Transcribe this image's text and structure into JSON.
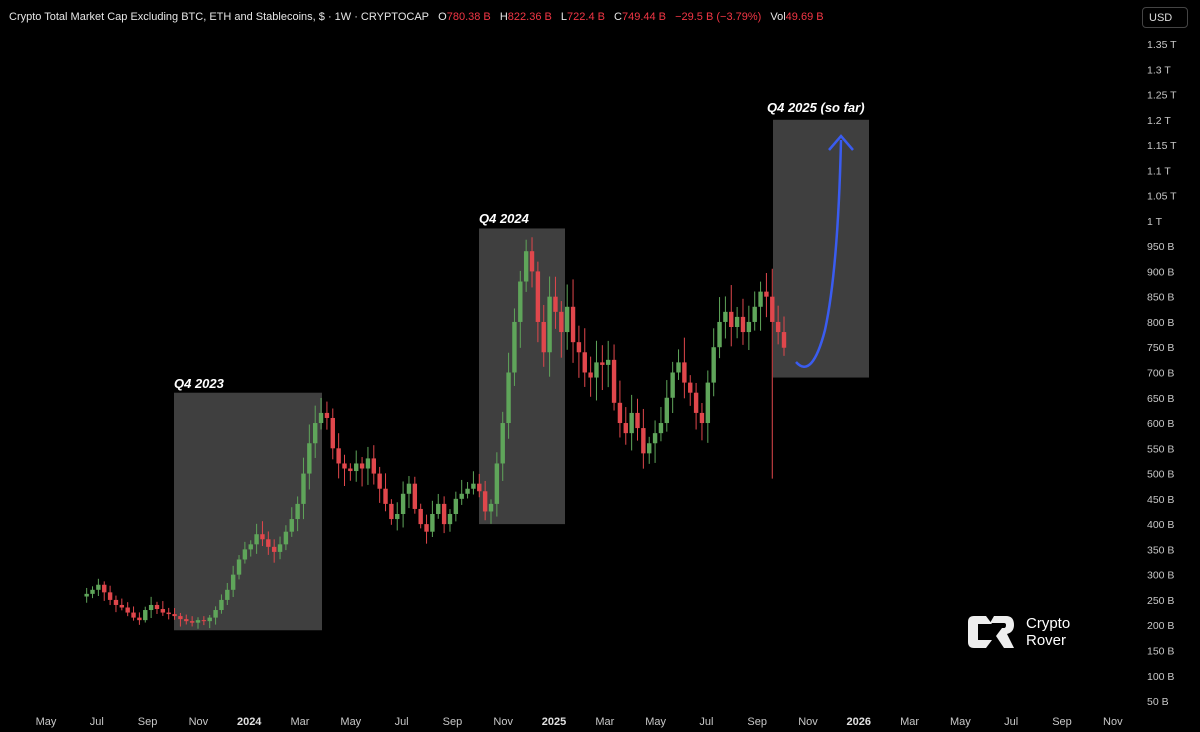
{
  "header": {
    "title": "Crypto Total Market Cap Excluding BTC, ETH and Stablecoins, $ · 1W · CRYPTOCAP",
    "open_label": "O",
    "open": "780.38 B",
    "high_label": "H",
    "high": "822.36 B",
    "low_label": "L",
    "low": "722.4 B",
    "close_label": "C",
    "close": "749.44 B",
    "change": "−29.5 B (−3.79%)",
    "vol_label": "Vol",
    "vol": "49.69 B"
  },
  "currency_button": "USD",
  "colors": {
    "up": "#5fa55a",
    "down": "#e0474c",
    "box": "#4a4a4a",
    "arrow": "#3a5cf0"
  },
  "logo": {
    "line1": "Crypto",
    "line2": "Rover"
  },
  "chart_data": {
    "type": "candlestick",
    "interval": "1W",
    "y_unit": "B",
    "ylim": [
      50,
      1350
    ],
    "y_ticks": [
      "1.35 T",
      "1.3 T",
      "1.25 T",
      "1.2 T",
      "1.15 T",
      "1.1 T",
      "1.05 T",
      "1 T",
      "950 B",
      "900 B",
      "850 B",
      "800 B",
      "750 B",
      "700 B",
      "650 B",
      "600 B",
      "550 B",
      "500 B",
      "450 B",
      "400 B",
      "350 B",
      "300 B",
      "250 B",
      "200 B",
      "150 B",
      "100 B",
      "50 B"
    ],
    "x_ticks": [
      {
        "label": "May",
        "bold": false
      },
      {
        "label": "Jul",
        "bold": false
      },
      {
        "label": "Sep",
        "bold": false
      },
      {
        "label": "Nov",
        "bold": false
      },
      {
        "label": "2024",
        "bold": true
      },
      {
        "label": "Mar",
        "bold": false
      },
      {
        "label": "May",
        "bold": false
      },
      {
        "label": "Jul",
        "bold": false
      },
      {
        "label": "Sep",
        "bold": false
      },
      {
        "label": "Nov",
        "bold": false
      },
      {
        "label": "2025",
        "bold": true
      },
      {
        "label": "Mar",
        "bold": false
      },
      {
        "label": "May",
        "bold": false
      },
      {
        "label": "Jul",
        "bold": false
      },
      {
        "label": "Sep",
        "bold": false
      },
      {
        "label": "Nov",
        "bold": false
      },
      {
        "label": "2026",
        "bold": true
      },
      {
        "label": "Mar",
        "bold": false
      },
      {
        "label": "May",
        "bold": false
      },
      {
        "label": "Jul",
        "bold": false
      },
      {
        "label": "Sep",
        "bold": false
      },
      {
        "label": "Nov",
        "bold": false
      }
    ],
    "weekly_closes": [
      262,
      270,
      280,
      265,
      250,
      240,
      235,
      225,
      215,
      210,
      230,
      240,
      232,
      225,
      222,
      218,
      212,
      208,
      205,
      210,
      208,
      215,
      230,
      250,
      270,
      300,
      330,
      350,
      360,
      380,
      370,
      355,
      345,
      360,
      385,
      410,
      440,
      500,
      560,
      600,
      620,
      610,
      550,
      520,
      510,
      505,
      520,
      510,
      530,
      500,
      470,
      440,
      410,
      420,
      460,
      480,
      430,
      400,
      385,
      420,
      440,
      400,
      420,
      450,
      460,
      470,
      480,
      465,
      425,
      440,
      520,
      600,
      700,
      800,
      880,
      940,
      900,
      800,
      740,
      850,
      820,
      780,
      830,
      760,
      740,
      700,
      690,
      720,
      715,
      725,
      640,
      600,
      580,
      620,
      590,
      540,
      560,
      580,
      600,
      650,
      700,
      720,
      680,
      660,
      620,
      600,
      680,
      750,
      800,
      820,
      790,
      810,
      780,
      800,
      830,
      860,
      850,
      800,
      780,
      749
    ],
    "annotations": [
      {
        "label": "Q4 2023",
        "from": "2023-10",
        "to": "2023-12",
        "low": 190,
        "high": 660
      },
      {
        "label": "Q4 2024",
        "from": "2024-10",
        "to": "2024-12",
        "low": 400,
        "high": 985
      },
      {
        "label": "Q4 2025 (so far)",
        "from": "2025-10",
        "to": "2025-12",
        "low": 690,
        "high": 1200
      }
    ]
  }
}
